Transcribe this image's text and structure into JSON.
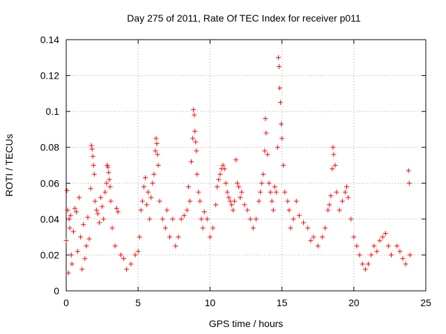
{
  "chart_data": {
    "type": "scatter",
    "title": "Day 275 of 2011, Rate Of TEC Index for receiver p011",
    "xlabel": "GPS time / hours",
    "ylabel": "ROTI / TECUs",
    "xlim": [
      0,
      25
    ],
    "ylim": [
      0,
      0.14
    ],
    "xticks": [
      "0",
      "5",
      "10",
      "15",
      "20",
      "25"
    ],
    "yticks": [
      "0",
      "0.02",
      "0.04",
      "0.06",
      "0.08",
      "0.1",
      "0.12",
      "0.14"
    ],
    "grid": true,
    "marker": "plus",
    "color": "#ff0000",
    "series": [
      {
        "points": [
          [
            0.0,
            0.028
          ],
          [
            0.05,
            0.056
          ],
          [
            0.1,
            0.045
          ],
          [
            0.15,
            0.01
          ],
          [
            0.2,
            0.04
          ],
          [
            0.25,
            0.035
          ],
          [
            0.3,
            0.042
          ],
          [
            0.35,
            0.02
          ],
          [
            0.4,
            0.015
          ],
          [
            0.5,
            0.033
          ],
          [
            0.6,
            0.046
          ],
          [
            0.7,
            0.044
          ],
          [
            0.8,
            0.022
          ],
          [
            0.9,
            0.052
          ],
          [
            1.0,
            0.03
          ],
          [
            1.1,
            0.012
          ],
          [
            1.2,
            0.037
          ],
          [
            1.3,
            0.018
          ],
          [
            1.4,
            0.025
          ],
          [
            1.5,
            0.041
          ],
          [
            1.6,
            0.029
          ],
          [
            1.7,
            0.057
          ],
          [
            1.75,
            0.081
          ],
          [
            1.8,
            0.079
          ],
          [
            1.85,
            0.075
          ],
          [
            1.9,
            0.07
          ],
          [
            1.95,
            0.065
          ],
          [
            2.0,
            0.05
          ],
          [
            2.1,
            0.045
          ],
          [
            2.2,
            0.043
          ],
          [
            2.3,
            0.038
          ],
          [
            2.4,
            0.052
          ],
          [
            2.5,
            0.047
          ],
          [
            2.6,
            0.04
          ],
          [
            2.7,
            0.055
          ],
          [
            2.8,
            0.06
          ],
          [
            2.85,
            0.07
          ],
          [
            2.9,
            0.069
          ],
          [
            2.95,
            0.066
          ],
          [
            3.0,
            0.062
          ],
          [
            3.05,
            0.058
          ],
          [
            3.1,
            0.05
          ],
          [
            3.2,
            0.035
          ],
          [
            3.4,
            0.025
          ],
          [
            3.5,
            0.046
          ],
          [
            3.6,
            0.044
          ],
          [
            3.8,
            0.02
          ],
          [
            4.0,
            0.018
          ],
          [
            4.2,
            0.012
          ],
          [
            4.5,
            0.015
          ],
          [
            4.8,
            0.02
          ],
          [
            5.0,
            0.022
          ],
          [
            5.1,
            0.03
          ],
          [
            5.2,
            0.045
          ],
          [
            5.3,
            0.05
          ],
          [
            5.4,
            0.058
          ],
          [
            5.5,
            0.063
          ],
          [
            5.6,
            0.048
          ],
          [
            5.7,
            0.055
          ],
          [
            5.8,
            0.04
          ],
          [
            5.9,
            0.052
          ],
          [
            6.0,
            0.06
          ],
          [
            6.1,
            0.065
          ],
          [
            6.2,
            0.078
          ],
          [
            6.25,
            0.085
          ],
          [
            6.3,
            0.082
          ],
          [
            6.35,
            0.076
          ],
          [
            6.4,
            0.07
          ],
          [
            6.5,
            0.05
          ],
          [
            6.7,
            0.04
          ],
          [
            6.9,
            0.035
          ],
          [
            7.0,
            0.045
          ],
          [
            7.2,
            0.03
          ],
          [
            7.4,
            0.04
          ],
          [
            7.6,
            0.025
          ],
          [
            7.8,
            0.03
          ],
          [
            8.0,
            0.04
          ],
          [
            8.2,
            0.042
          ],
          [
            8.4,
            0.045
          ],
          [
            8.5,
            0.058
          ],
          [
            8.6,
            0.05
          ],
          [
            8.7,
            0.072
          ],
          [
            8.8,
            0.085
          ],
          [
            8.85,
            0.101
          ],
          [
            8.9,
            0.098
          ],
          [
            8.95,
            0.089
          ],
          [
            9.0,
            0.083
          ],
          [
            9.05,
            0.078
          ],
          [
            9.1,
            0.065
          ],
          [
            9.2,
            0.055
          ],
          [
            9.3,
            0.05
          ],
          [
            9.4,
            0.04
          ],
          [
            9.5,
            0.035
          ],
          [
            9.6,
            0.044
          ],
          [
            9.8,
            0.04
          ],
          [
            10.0,
            0.03
          ],
          [
            10.2,
            0.035
          ],
          [
            10.4,
            0.048
          ],
          [
            10.5,
            0.058
          ],
          [
            10.6,
            0.062
          ],
          [
            10.7,
            0.065
          ],
          [
            10.8,
            0.068
          ],
          [
            10.9,
            0.07
          ],
          [
            11.0,
            0.068
          ],
          [
            11.1,
            0.06
          ],
          [
            11.2,
            0.055
          ],
          [
            11.3,
            0.052
          ],
          [
            11.4,
            0.05
          ],
          [
            11.5,
            0.048
          ],
          [
            11.6,
            0.045
          ],
          [
            11.7,
            0.05
          ],
          [
            11.8,
            0.073
          ],
          [
            11.9,
            0.06
          ],
          [
            12.0,
            0.058
          ],
          [
            12.1,
            0.052
          ],
          [
            12.2,
            0.055
          ],
          [
            12.4,
            0.048
          ],
          [
            12.6,
            0.045
          ],
          [
            12.8,
            0.04
          ],
          [
            13.0,
            0.035
          ],
          [
            13.2,
            0.04
          ],
          [
            13.4,
            0.05
          ],
          [
            13.5,
            0.055
          ],
          [
            13.6,
            0.06
          ],
          [
            13.7,
            0.065
          ],
          [
            13.8,
            0.078
          ],
          [
            13.85,
            0.096
          ],
          [
            13.9,
            0.088
          ],
          [
            14.0,
            0.076
          ],
          [
            14.1,
            0.06
          ],
          [
            14.2,
            0.055
          ],
          [
            14.3,
            0.05
          ],
          [
            14.4,
            0.045
          ],
          [
            14.5,
            0.058
          ],
          [
            14.6,
            0.055
          ],
          [
            14.7,
            0.08
          ],
          [
            14.75,
            0.13
          ],
          [
            14.8,
            0.125
          ],
          [
            14.85,
            0.113
          ],
          [
            14.9,
            0.105
          ],
          [
            14.95,
            0.093
          ],
          [
            15.0,
            0.085
          ],
          [
            15.1,
            0.07
          ],
          [
            15.2,
            0.055
          ],
          [
            15.4,
            0.05
          ],
          [
            15.5,
            0.045
          ],
          [
            15.6,
            0.035
          ],
          [
            15.8,
            0.04
          ],
          [
            16.0,
            0.05
          ],
          [
            16.2,
            0.042
          ],
          [
            16.5,
            0.038
          ],
          [
            16.8,
            0.035
          ],
          [
            17.0,
            0.028
          ],
          [
            17.2,
            0.03
          ],
          [
            17.5,
            0.025
          ],
          [
            17.8,
            0.03
          ],
          [
            18.0,
            0.035
          ],
          [
            18.2,
            0.045
          ],
          [
            18.3,
            0.048
          ],
          [
            18.4,
            0.053
          ],
          [
            18.5,
            0.068
          ],
          [
            18.55,
            0.08
          ],
          [
            18.6,
            0.076
          ],
          [
            18.7,
            0.07
          ],
          [
            18.8,
            0.055
          ],
          [
            19.0,
            0.045
          ],
          [
            19.2,
            0.05
          ],
          [
            19.4,
            0.055
          ],
          [
            19.5,
            0.058
          ],
          [
            19.6,
            0.052
          ],
          [
            19.8,
            0.04
          ],
          [
            20.0,
            0.03
          ],
          [
            20.2,
            0.025
          ],
          [
            20.4,
            0.02
          ],
          [
            20.6,
            0.015
          ],
          [
            20.8,
            0.012
          ],
          [
            21.0,
            0.015
          ],
          [
            21.2,
            0.02
          ],
          [
            21.4,
            0.025
          ],
          [
            21.6,
            0.022
          ],
          [
            21.8,
            0.028
          ],
          [
            22.0,
            0.03
          ],
          [
            22.2,
            0.032
          ],
          [
            22.4,
            0.025
          ],
          [
            22.6,
            0.02
          ],
          [
            23.0,
            0.025
          ],
          [
            23.2,
            0.022
          ],
          [
            23.4,
            0.018
          ],
          [
            23.6,
            0.015
          ],
          [
            23.8,
            0.067
          ],
          [
            23.85,
            0.06
          ],
          [
            23.9,
            0.02
          ]
        ]
      }
    ]
  }
}
